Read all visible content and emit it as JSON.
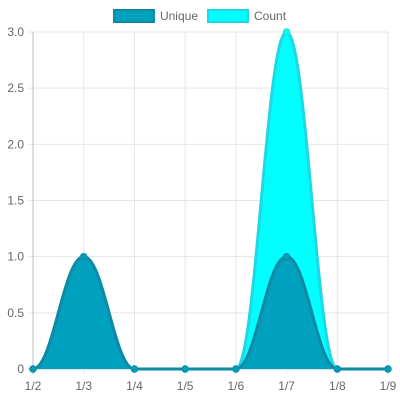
{
  "chart_data": {
    "type": "area",
    "title": "",
    "xlabel": "",
    "ylabel": "",
    "categories": [
      "1/2",
      "1/3",
      "1/4",
      "1/5",
      "1/6",
      "1/7",
      "1/8",
      "1/9"
    ],
    "ylim": [
      0,
      3
    ],
    "yticks": [
      "0",
      "0.5",
      "1.0",
      "1.5",
      "2.0",
      "2.5",
      "3.0"
    ],
    "yticks_values": [
      0,
      0.5,
      1,
      1.5,
      2,
      2.5,
      3
    ],
    "grid": true,
    "legend_position": "top-center",
    "series": [
      {
        "name": "Unique",
        "values": [
          0,
          1,
          0,
          0,
          0,
          1,
          0,
          0
        ],
        "fill": "#00a0bf",
        "stroke": "#0e8aa3",
        "point": "#0a9bb8"
      },
      {
        "name": "Count",
        "values": [
          0,
          1,
          0,
          0,
          0,
          3,
          0,
          0
        ],
        "fill": "#00ffff",
        "stroke": "#1ed8e6",
        "point": "#00ffff"
      }
    ]
  }
}
